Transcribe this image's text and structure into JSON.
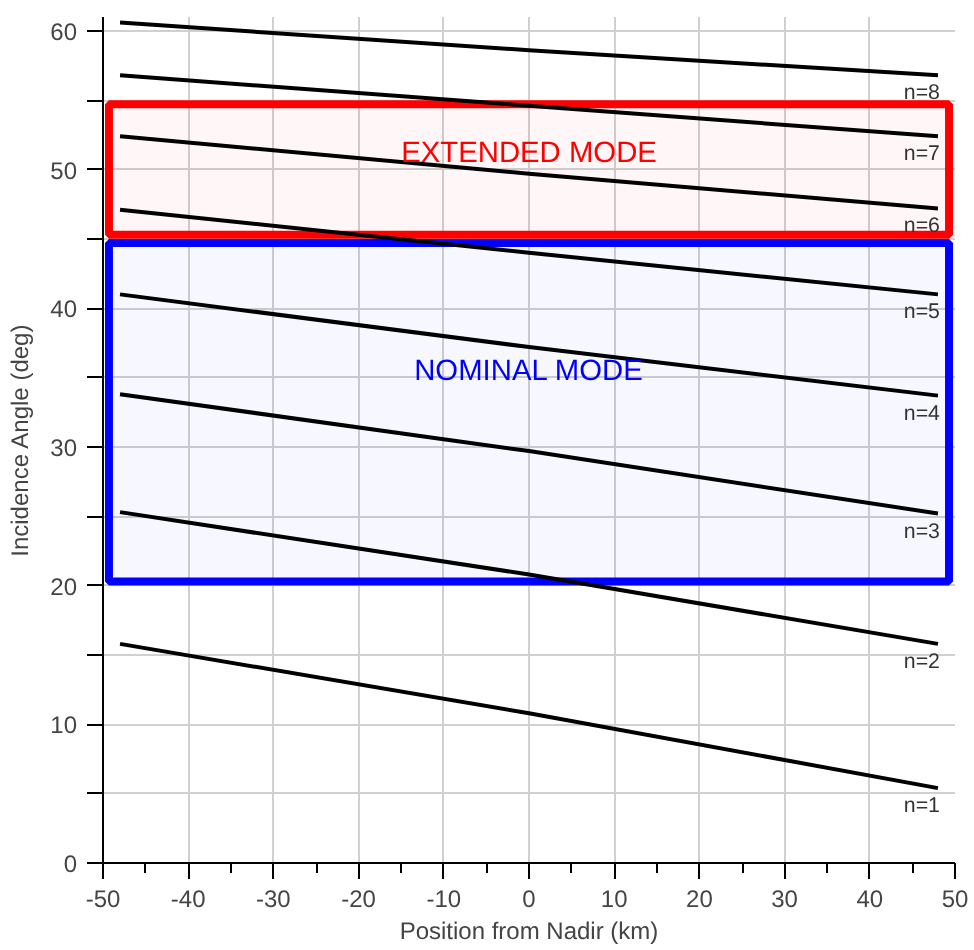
{
  "chart_data": {
    "type": "line",
    "xlabel": "Position from Nadir (km)",
    "ylabel": "Incidence Angle (deg)",
    "x": [
      -48,
      0,
      48
    ],
    "series": [
      {
        "name": "n=1",
        "color": "#000000",
        "values": [
          15.8,
          10.8,
          5.4
        ]
      },
      {
        "name": "n=2",
        "color": "#000000",
        "values": [
          25.3,
          20.8,
          15.8
        ]
      },
      {
        "name": "n=3",
        "color": "#000000",
        "values": [
          33.8,
          29.7,
          25.2
        ]
      },
      {
        "name": "n=4",
        "color": "#000000",
        "values": [
          41.0,
          37.2,
          33.7
        ]
      },
      {
        "name": "n=5",
        "color": "#000000",
        "values": [
          47.1,
          44.0,
          41.0
        ]
      },
      {
        "name": "n=6",
        "color": "#000000",
        "values": [
          52.4,
          49.7,
          47.2
        ]
      },
      {
        "name": "n=7",
        "color": "#000000",
        "values": [
          56.8,
          54.6,
          52.4
        ]
      },
      {
        "name": "n=8",
        "color": "#000000",
        "values": [
          60.6,
          58.6,
          56.8
        ]
      }
    ],
    "xlim": [
      -50,
      50
    ],
    "ylim": [
      0,
      61
    ],
    "xticks": [
      -50,
      -40,
      -30,
      -20,
      -10,
      0,
      10,
      20,
      30,
      40,
      50
    ],
    "yticks": [
      0,
      {
        "value": 5,
        "label": null
      },
      10,
      {
        "value": 15,
        "label": null
      },
      20,
      {
        "value": 25,
        "label": null
      },
      30,
      {
        "value": 35,
        "label": null
      },
      40,
      {
        "value": 45,
        "label": null
      },
      50,
      {
        "value": 55,
        "label": null
      },
      60
    ],
    "bands": [
      {
        "axis": "y",
        "from": 45.3,
        "to": 54.7,
        "label": "EXTENDED MODE",
        "color": "#ff0000"
      },
      {
        "axis": "y",
        "from": 20.3,
        "to": 44.7,
        "label": "NOMINAL MODE",
        "color": "#0000ff"
      }
    ],
    "grid": true,
    "marker": "none",
    "line_style": "solid"
  }
}
